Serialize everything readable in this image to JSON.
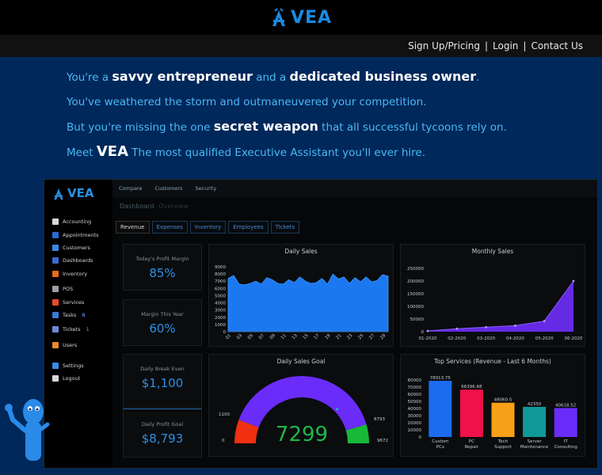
{
  "brand": {
    "name": "VEA",
    "color": "#1a8ae0"
  },
  "nav": {
    "signup": "Sign Up/Pricing",
    "login": "Login",
    "contact": "Contact Us",
    "sep": "|"
  },
  "hero": {
    "line1": {
      "a": "You're a ",
      "b": "savvy entrepreneur",
      "c": " and a ",
      "d": "dedicated business owner",
      "e": "."
    },
    "line2": "You've weathered the storm and outmaneuvered your competition.",
    "line3": {
      "a": "But you're missing the one ",
      "b": "secret weapon",
      "c": " that all successful tycoons rely on."
    },
    "line4": {
      "a": "Meet ",
      "b": "VEA",
      "c": " The most qualified Executive Assistant you'll ever hire."
    }
  },
  "app": {
    "logo": "VEA",
    "sidebar": [
      {
        "label": "Accounting",
        "icon": "accounting-icon",
        "color": "#d8d8d8",
        "badge": ""
      },
      {
        "label": "Appointments",
        "icon": "calendar-icon",
        "color": "#2a6ad8",
        "badge": ""
      },
      {
        "label": "Customers",
        "icon": "customers-icon",
        "color": "#3a8ae8",
        "badge": ""
      },
      {
        "label": "Dashboards",
        "icon": "dashboard-icon",
        "color": "#3a6ad0",
        "badge": ""
      },
      {
        "label": "Inventory",
        "icon": "inventory-icon",
        "color": "#e86a1a",
        "badge": ""
      },
      {
        "label": "POS",
        "icon": "pos-icon",
        "color": "#9aa0a8",
        "badge": ""
      },
      {
        "label": "Services",
        "icon": "services-icon",
        "color": "#e84a2a",
        "badge": ""
      },
      {
        "label": "Tasks",
        "icon": "tasks-icon",
        "color": "#3a7ad8",
        "badge": "8"
      },
      {
        "label": "Tickets",
        "icon": "tickets-icon",
        "color": "#6a8ad8",
        "badge": "1"
      },
      {
        "label": "Users",
        "icon": "users-icon",
        "color": "#e88a2a",
        "badge": ""
      },
      {
        "label": "Settings",
        "icon": "settings-icon",
        "color": "#3a8ae8",
        "badge": ""
      },
      {
        "label": "Logout",
        "icon": "logout-icon",
        "color": "#d8d8d8",
        "badge": ""
      }
    ],
    "topnav": [
      "Compare",
      "Customers",
      "Security"
    ],
    "dash_title": "Dashboard",
    "dash_sub": "Overview",
    "tabs": [
      {
        "label": "Revenue",
        "active": true
      },
      {
        "label": "Expenses",
        "active": false
      },
      {
        "label": "Inventory",
        "active": false
      },
      {
        "label": "Employees",
        "active": false
      },
      {
        "label": "Tickets",
        "active": false
      }
    ],
    "kpis": [
      {
        "label": "Today's Profit Margin",
        "value": "85%"
      },
      {
        "label": "Margin This Year",
        "value": "60%"
      },
      {
        "label": "Daily Break Even",
        "value": "$1,100"
      },
      {
        "label": "Daily Profit Goal",
        "value": "$8,793"
      }
    ]
  },
  "chart_data": [
    {
      "type": "area",
      "title": "Daily Sales",
      "ylim": [
        0,
        9000
      ],
      "yticks": [
        0,
        1000,
        2000,
        3000,
        4000,
        5000,
        6000,
        7000,
        8000,
        9000
      ],
      "xticks": [
        "01",
        "03",
        "05",
        "07",
        "09",
        "11",
        "13",
        "15",
        "17",
        "19",
        "21",
        "23",
        "25",
        "27",
        "29"
      ],
      "x": [
        1,
        2,
        3,
        4,
        5,
        6,
        7,
        8,
        9,
        10,
        11,
        12,
        13,
        14,
        15,
        16,
        17,
        18,
        19,
        20,
        21,
        22,
        23,
        24,
        25,
        26,
        27,
        28,
        29,
        30
      ],
      "values": [
        7400,
        7800,
        6600,
        6500,
        6700,
        7000,
        6600,
        7500,
        7200,
        6700,
        6600,
        7200,
        6800,
        7600,
        7000,
        6700,
        6800,
        7400,
        6600,
        8000,
        7300,
        7600,
        6700,
        7500,
        6900,
        7600,
        6900,
        7100,
        7900,
        7700
      ],
      "color": "#1c78f0"
    },
    {
      "type": "line",
      "title": "Monthly Sales",
      "ylim": [
        0,
        250000
      ],
      "yticks": [
        0,
        50000,
        100000,
        150000,
        200000,
        250000
      ],
      "categories": [
        "01-2020",
        "02-2020",
        "03-2020",
        "04-2020",
        "05-2020",
        "06-2020"
      ],
      "values": [
        3000,
        12000,
        18000,
        24000,
        42000,
        200000
      ],
      "color": "#6a2cf0"
    },
    {
      "type": "gauge",
      "title": "Daily Sales Goal",
      "value": "7299",
      "min_label": "0",
      "max_label": "9672",
      "break_even_label": "1100",
      "goal_label": "8793",
      "min": 0,
      "max": 9672,
      "break_even": 1100,
      "goal": 8793,
      "current": 7299,
      "colors": {
        "low": "#f03010",
        "mid": "#6a2cf8",
        "high": "#18b838",
        "value": "#1eb84a"
      }
    },
    {
      "type": "bar",
      "title": "Top Services (Revenue - Last 6 Months)",
      "ylim": [
        0,
        80000
      ],
      "yticks": [
        0,
        10000,
        20000,
        30000,
        40000,
        50000,
        60000,
        70000,
        80000
      ],
      "categories": [
        "Custom PCs",
        "PC Repair",
        "Tech Support",
        "Server Maintenance",
        "IT Consulting"
      ],
      "cat_lines": [
        [
          "Custom",
          "PCs"
        ],
        [
          "PC",
          "Repair"
        ],
        [
          "Tech",
          "Support"
        ],
        [
          "Server",
          "Maintenance"
        ],
        [
          "IT",
          "Consulting"
        ]
      ],
      "values": [
        78913.75,
        66396.68,
        48060.5,
        42350,
        40618.52
      ],
      "labels": [
        "78913.75",
        "66396.68",
        "48060.5",
        "42350",
        "40618.52"
      ],
      "colors": [
        "#1c6cf0",
        "#f0104a",
        "#f8a018",
        "#109898",
        "#6a2cf8"
      ]
    }
  ]
}
